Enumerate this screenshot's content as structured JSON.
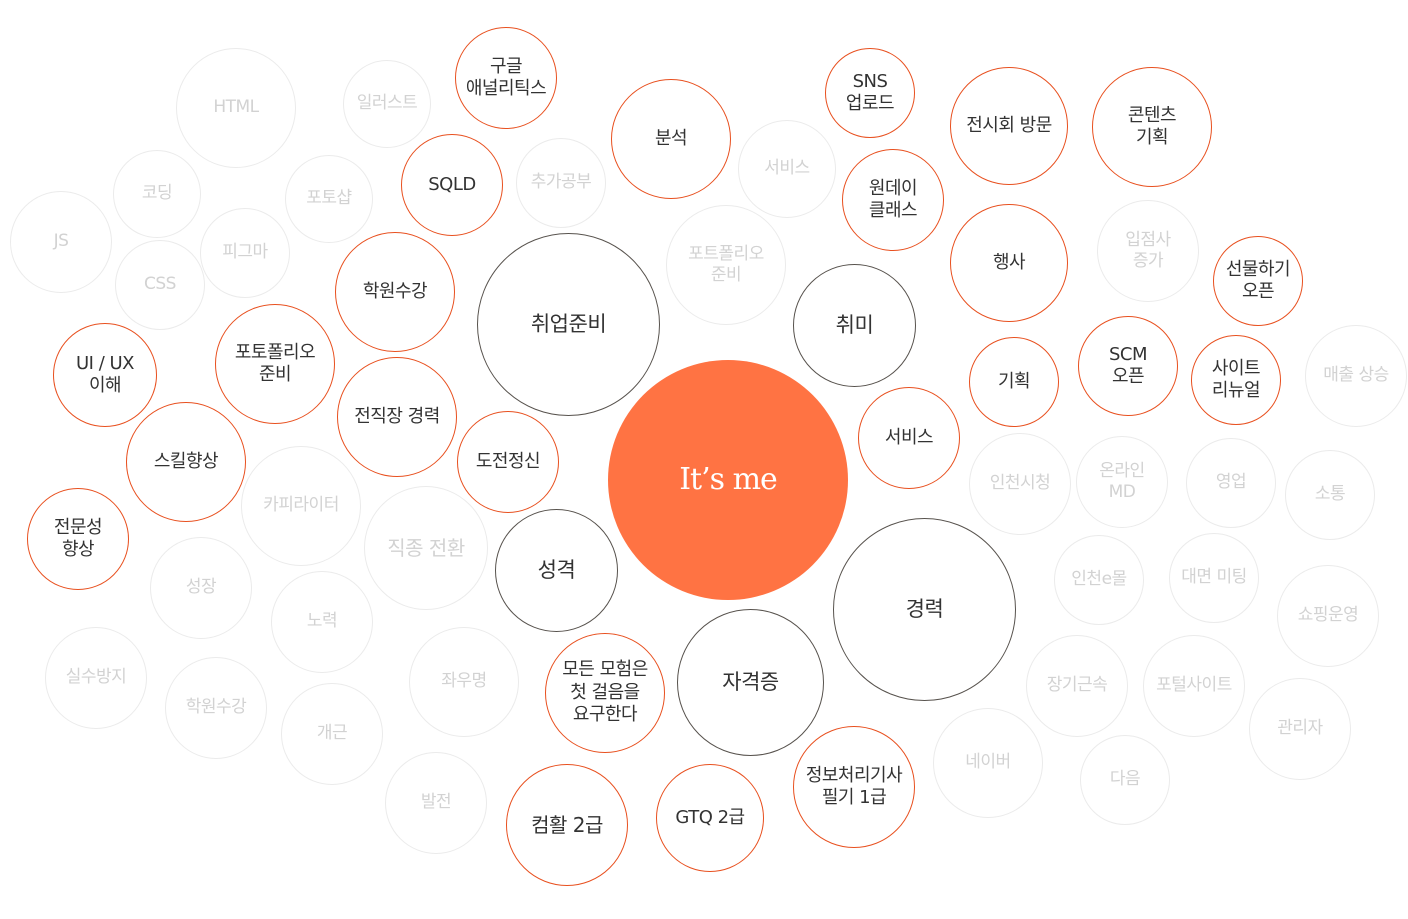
{
  "center_label": "It’s me",
  "colors": {
    "center_fill": "#ff7343",
    "orange_border": "#e8501f",
    "dark_border": "#57524d",
    "faded_border": "#ebebeb",
    "faded_text": "#d2d2d2"
  },
  "categories": [
    {
      "label": "취업준비",
      "style": "dark"
    },
    {
      "label": "취미",
      "style": "dark"
    },
    {
      "label": "성격",
      "style": "dark"
    },
    {
      "label": "자격증",
      "style": "dark"
    },
    {
      "label": "경력",
      "style": "dark"
    }
  ],
  "highlighted": [
    {
      "label": "구글\n애널리틱스"
    },
    {
      "label": "SQLD"
    },
    {
      "label": "학원수강"
    },
    {
      "label": "포토폴리오\n준비"
    },
    {
      "label": "전직장 경력"
    },
    {
      "label": "UI / UX\n이해"
    },
    {
      "label": "스킬향상"
    },
    {
      "label": "전문성\n향상"
    },
    {
      "label": "도전정신"
    },
    {
      "label": "분석"
    },
    {
      "label": "SNS\n업로드"
    },
    {
      "label": "원데이\n클래스"
    },
    {
      "label": "서비스"
    },
    {
      "label": "전시회 방문"
    },
    {
      "label": "행사"
    },
    {
      "label": "기획"
    },
    {
      "label": "콘텐츠\n기획"
    },
    {
      "label": "SCM\n오픈"
    },
    {
      "label": "사이트\n리뉴얼"
    },
    {
      "label": "선물하기\n오픈"
    },
    {
      "label": "모든 모험은\n첫 걸음을\n요구한다"
    },
    {
      "label": "컴활 2급"
    },
    {
      "label": "GTQ 2급"
    },
    {
      "label": "정보처리기사\n필기 1급"
    }
  ],
  "faded": [
    {
      "label": "HTML"
    },
    {
      "label": "일러스트"
    },
    {
      "label": "코딩"
    },
    {
      "label": "포토샵"
    },
    {
      "label": "추가공부"
    },
    {
      "label": "JS"
    },
    {
      "label": "피그마"
    },
    {
      "label": "CSS"
    },
    {
      "label": "서비스"
    },
    {
      "label": "포트폴리오\n준비"
    },
    {
      "label": "카피라이터"
    },
    {
      "label": "직종 전환"
    },
    {
      "label": "성장"
    },
    {
      "label": "노력"
    },
    {
      "label": "실수방지"
    },
    {
      "label": "학원수강"
    },
    {
      "label": "개근"
    },
    {
      "label": "좌우명"
    },
    {
      "label": "발전"
    },
    {
      "label": "입점사\n증가"
    },
    {
      "label": "매출 상승"
    },
    {
      "label": "인천시청"
    },
    {
      "label": "온라인\nMD"
    },
    {
      "label": "영업"
    },
    {
      "label": "소통"
    },
    {
      "label": "인천e몰"
    },
    {
      "label": "대면 미팅"
    },
    {
      "label": "쇼핑운영"
    },
    {
      "label": "장기근속"
    },
    {
      "label": "포털사이트"
    },
    {
      "label": "관리자"
    },
    {
      "label": "네이버"
    },
    {
      "label": "다음"
    }
  ]
}
